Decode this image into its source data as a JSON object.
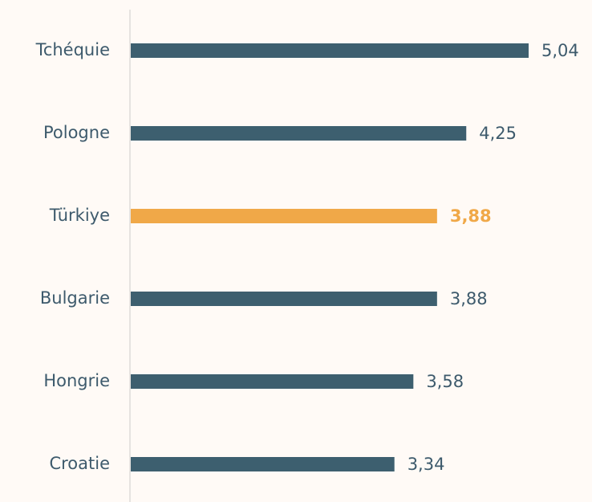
{
  "chart_data": {
    "type": "barh",
    "categories": [
      "Tchéquie",
      "Pologne",
      "Türkiye",
      "Bulgarie",
      "Hongrie",
      "Croatie"
    ],
    "values": [
      5.04,
      4.25,
      3.88,
      3.88,
      3.58,
      3.34
    ],
    "value_labels": [
      "5,04",
      "4,25",
      "3,88",
      "3,88",
      "3,58",
      "3,34"
    ],
    "colors": [
      "#3d5f6f",
      "#3d5f6f",
      "#f0a848",
      "#3d5f6f",
      "#3d5f6f",
      "#3d5f6f"
    ]
  }
}
